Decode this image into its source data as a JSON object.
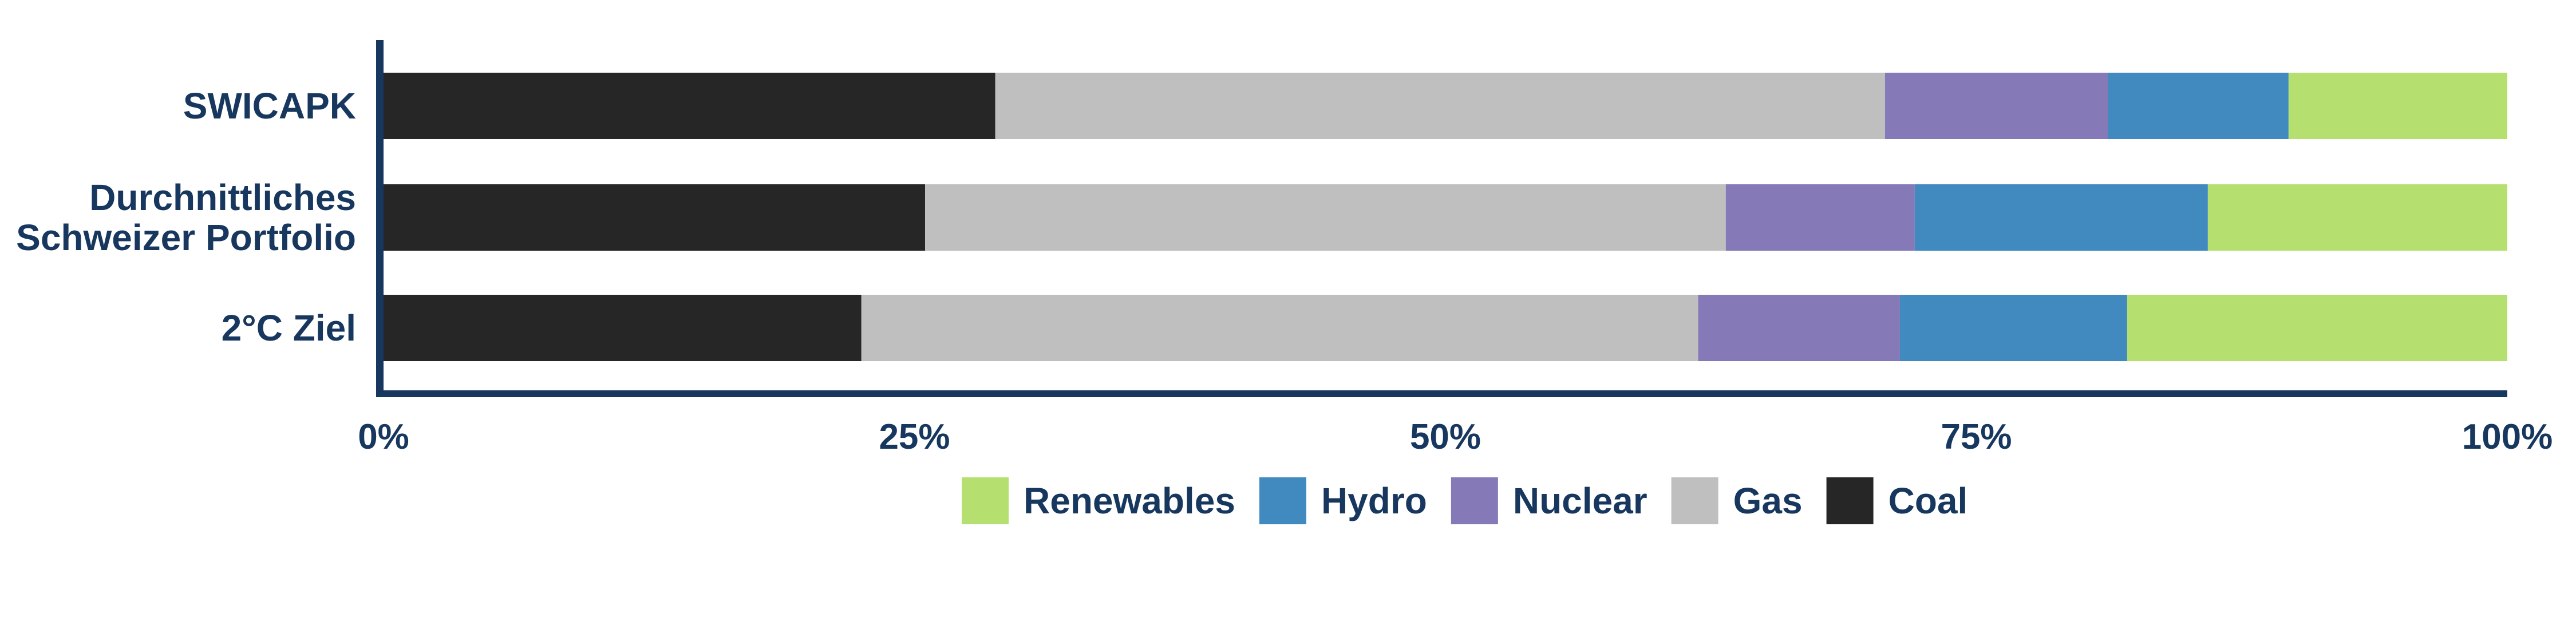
{
  "chart_data": {
    "type": "bar",
    "orientation": "horizontal",
    "stacked": "percent",
    "categories": [
      [
        "SWICAPK"
      ],
      [
        "Durchnittliches",
        "Schweizer Portfolio"
      ],
      [
        "2°C Ziel"
      ]
    ],
    "series": [
      {
        "name": "Coal",
        "color": "#262626",
        "values": [
          28.8,
          25.5,
          22.5
        ]
      },
      {
        "name": "Gas",
        "color": "#bfbfbf",
        "values": [
          41.9,
          37.7,
          39.4
        ]
      },
      {
        "name": "Nuclear",
        "color": "#8579b8",
        "values": [
          10.5,
          8.9,
          9.5
        ]
      },
      {
        "name": "Hydro",
        "color": "#408abf",
        "values": [
          8.5,
          13.8,
          10.7
        ]
      },
      {
        "name": "Renewables",
        "color": "#b5e06f",
        "values": [
          10.3,
          14.1,
          17.9
        ]
      }
    ],
    "xlim": [
      0,
      100
    ],
    "xticks": [
      "0%",
      "25%",
      "50%",
      "75%",
      "100%"
    ],
    "legend_order": [
      "Renewables",
      "Hydro",
      "Nuclear",
      "Gas",
      "Coal"
    ],
    "legend_position": "bottom",
    "grid": false,
    "title": "",
    "xlabel": "",
    "ylabel": "",
    "axis_color": "#17375e"
  }
}
